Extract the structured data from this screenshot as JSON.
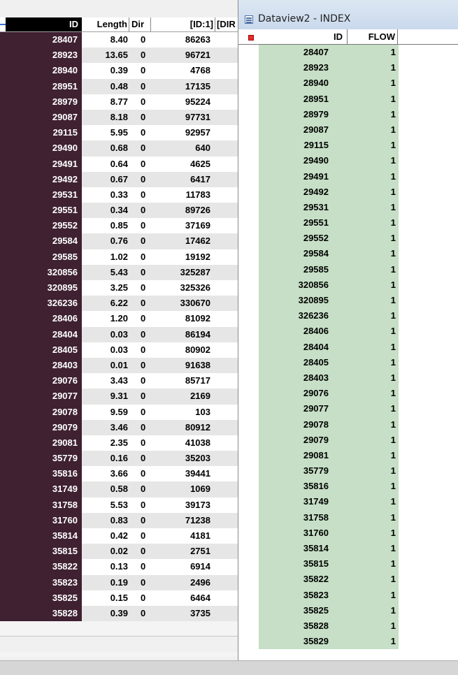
{
  "left_table": {
    "columns": [
      "ID",
      "Length",
      "Dir",
      "[ID:1]",
      "[DIR"
    ],
    "rows": [
      [
        "28407",
        "8.40",
        "0",
        "86263"
      ],
      [
        "28923",
        "13.65",
        "0",
        "96721"
      ],
      [
        "28940",
        "0.39",
        "0",
        "4768"
      ],
      [
        "28951",
        "0.48",
        "0",
        "17135"
      ],
      [
        "28979",
        "8.77",
        "0",
        "95224"
      ],
      [
        "29087",
        "8.18",
        "0",
        "97731"
      ],
      [
        "29115",
        "5.95",
        "0",
        "92957"
      ],
      [
        "29490",
        "0.68",
        "0",
        "640"
      ],
      [
        "29491",
        "0.64",
        "0",
        "4625"
      ],
      [
        "29492",
        "0.67",
        "0",
        "6417"
      ],
      [
        "29531",
        "0.33",
        "0",
        "11783"
      ],
      [
        "29551",
        "0.34",
        "0",
        "89726"
      ],
      [
        "29552",
        "0.85",
        "0",
        "37169"
      ],
      [
        "29584",
        "0.76",
        "0",
        "17462"
      ],
      [
        "29585",
        "1.02",
        "0",
        "19192"
      ],
      [
        "320856",
        "5.43",
        "0",
        "325287"
      ],
      [
        "320895",
        "3.25",
        "0",
        "325326"
      ],
      [
        "326236",
        "6.22",
        "0",
        "330670"
      ],
      [
        "28406",
        "1.20",
        "0",
        "81092"
      ],
      [
        "28404",
        "0.03",
        "0",
        "86194"
      ],
      [
        "28405",
        "0.03",
        "0",
        "80902"
      ],
      [
        "28403",
        "0.01",
        "0",
        "91638"
      ],
      [
        "29076",
        "3.43",
        "0",
        "85717"
      ],
      [
        "29077",
        "9.31",
        "0",
        "2169"
      ],
      [
        "29078",
        "9.59",
        "0",
        "103"
      ],
      [
        "29079",
        "3.46",
        "0",
        "80912"
      ],
      [
        "29081",
        "2.35",
        "0",
        "41038"
      ],
      [
        "35779",
        "0.16",
        "0",
        "35203"
      ],
      [
        "35816",
        "3.66",
        "0",
        "39441"
      ],
      [
        "31749",
        "0.58",
        "0",
        "1069"
      ],
      [
        "31758",
        "5.53",
        "0",
        "39173"
      ],
      [
        "31760",
        "0.83",
        "0",
        "71238"
      ],
      [
        "35814",
        "0.42",
        "0",
        "4181"
      ],
      [
        "35815",
        "0.02",
        "0",
        "2751"
      ],
      [
        "35822",
        "0.13",
        "0",
        "6914"
      ],
      [
        "35823",
        "0.19",
        "0",
        "2496"
      ],
      [
        "35825",
        "0.15",
        "0",
        "6464"
      ],
      [
        "35828",
        "0.39",
        "0",
        "3735"
      ]
    ]
  },
  "dataview": {
    "title": "Dataview2 - INDEX",
    "columns": [
      "ID",
      "FLOW"
    ],
    "rows": [
      [
        "28407",
        "1"
      ],
      [
        "28923",
        "1"
      ],
      [
        "28940",
        "1"
      ],
      [
        "28951",
        "1"
      ],
      [
        "28979",
        "1"
      ],
      [
        "29087",
        "1"
      ],
      [
        "29115",
        "1"
      ],
      [
        "29490",
        "1"
      ],
      [
        "29491",
        "1"
      ],
      [
        "29492",
        "1"
      ],
      [
        "29531",
        "1"
      ],
      [
        "29551",
        "1"
      ],
      [
        "29552",
        "1"
      ],
      [
        "29584",
        "1"
      ],
      [
        "29585",
        "1"
      ],
      [
        "320856",
        "1"
      ],
      [
        "320895",
        "1"
      ],
      [
        "326236",
        "1"
      ],
      [
        "28406",
        "1"
      ],
      [
        "28404",
        "1"
      ],
      [
        "28405",
        "1"
      ],
      [
        "28403",
        "1"
      ],
      [
        "29076",
        "1"
      ],
      [
        "29077",
        "1"
      ],
      [
        "29078",
        "1"
      ],
      [
        "29079",
        "1"
      ],
      [
        "29081",
        "1"
      ],
      [
        "35779",
        "1"
      ],
      [
        "35816",
        "1"
      ],
      [
        "31749",
        "1"
      ],
      [
        "31758",
        "1"
      ],
      [
        "31760",
        "1"
      ],
      [
        "35814",
        "1"
      ],
      [
        "35815",
        "1"
      ],
      [
        "35822",
        "1"
      ],
      [
        "35823",
        "1"
      ],
      [
        "35825",
        "1"
      ],
      [
        "35828",
        "1"
      ],
      [
        "35829",
        "1"
      ]
    ]
  },
  "colors": {
    "id_column_bg": "#3f2132",
    "dataview_row_bg": "#c6dfc6",
    "row_alt_bg": "#e6e6e6"
  }
}
